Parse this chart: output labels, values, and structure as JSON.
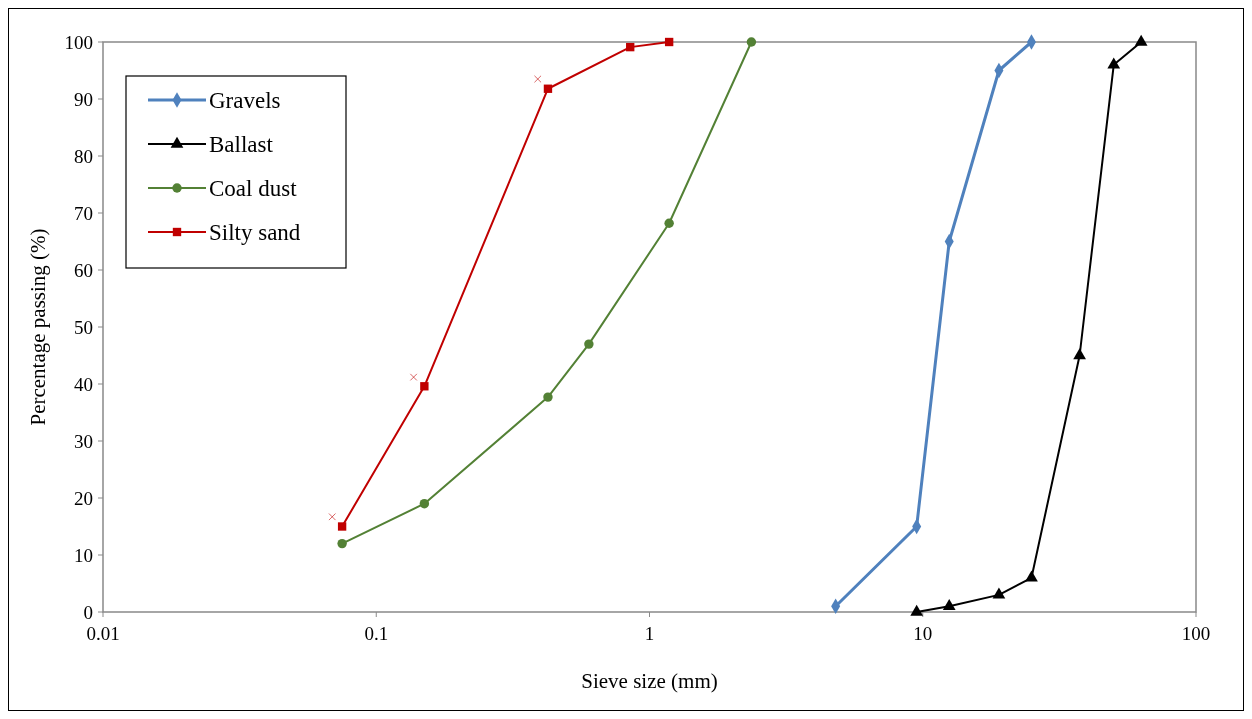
{
  "chart_data": {
    "type": "line",
    "xlabel": "Sieve size (mm)",
    "ylabel": "Percentage passing (%)",
    "log": "x",
    "xlim": [
      0.01,
      100
    ],
    "xticks": [
      0.01,
      0.1,
      1,
      10,
      100
    ],
    "ylim": [
      0,
      100
    ],
    "yticks": [
      0,
      10,
      20,
      30,
      40,
      50,
      60,
      70,
      80,
      90,
      100
    ],
    "grid": false,
    "legend": "top left",
    "series": [
      {
        "name": "Gravels",
        "color": "#4f81bd",
        "marker": "diamond",
        "x": [
          4.8,
          9.5,
          12.5,
          19,
          25
        ],
        "values": [
          1,
          15,
          65,
          95,
          100
        ]
      },
      {
        "name": "Ballast",
        "color": "#000000",
        "marker": "triangle",
        "x": [
          9.5,
          12.5,
          19,
          25,
          37.5,
          50,
          63
        ],
        "values": [
          0,
          1,
          3,
          6,
          45,
          96,
          100
        ]
      },
      {
        "name": "Coal dust",
        "color": "#538135",
        "marker": "circle",
        "x": [
          0.075,
          0.15,
          0.425,
          0.6,
          1.18,
          2.36
        ],
        "values": [
          12,
          19,
          37.7,
          47,
          68.2,
          100
        ]
      },
      {
        "name": "Silty sand",
        "color": "#c00000",
        "marker": "square",
        "x": [
          0.075,
          0.15,
          0.425,
          0.85,
          1.18
        ],
        "values": [
          15,
          39.6,
          91.8,
          99.1,
          100
        ]
      },
      {
        "type": "scatter",
        "color": "#c00000",
        "marker": "cross",
        "x": [
          0.069,
          0.137,
          0.39
        ],
        "values": [
          16.7,
          41.2,
          93.5
        ]
      }
    ]
  }
}
